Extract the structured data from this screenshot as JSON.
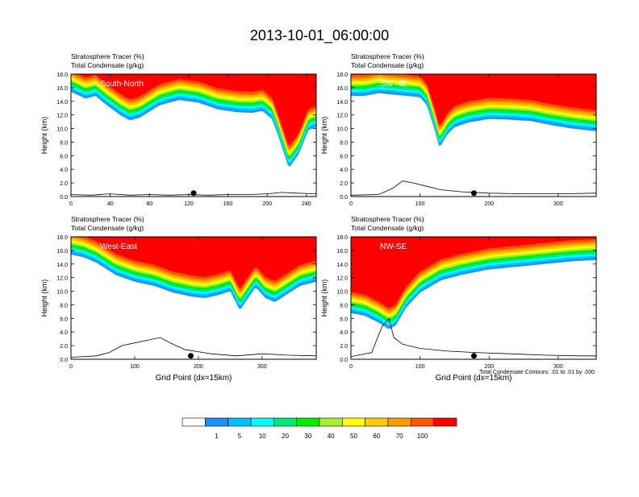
{
  "figure_title": "2013-10-01_06:00:00",
  "colorbar": {
    "colors": [
      "#ffffff",
      "#1e90ff",
      "#00bfff",
      "#00ffff",
      "#00e87a",
      "#00ee00",
      "#a8f030",
      "#ffff00",
      "#ffcc00",
      "#ff9900",
      "#ff5500",
      "#ff0000"
    ],
    "labels": [
      "1",
      "5",
      "10",
      "20",
      "30",
      "40",
      "50",
      "60",
      "70",
      "100"
    ]
  },
  "footnote": "Total Condensate Contours: .01 to .01 by .000",
  "chart_data": [
    {
      "type": "heatmap",
      "label": "South-North",
      "title_line1": "Stratosphere Tracer   (%)",
      "title_line2": "Total Condensate   (g/kg)",
      "ylabel": "Height (km)",
      "xlabel": "",
      "xlim": [
        0,
        250
      ],
      "ylim": [
        0,
        18
      ],
      "xticks": [
        0,
        40,
        80,
        120,
        160,
        200,
        240
      ],
      "yticks": [
        "0.0",
        "2.0",
        "4.0",
        "6.0",
        "8.0",
        "10.0",
        "12.0",
        "14.0",
        "16.0",
        "18.0"
      ],
      "marker_x": 125,
      "tracer_base_km": [
        [
          0,
          15.4
        ],
        [
          15,
          14.4
        ],
        [
          25,
          14.8
        ],
        [
          35,
          13.6
        ],
        [
          50,
          12.0
        ],
        [
          60,
          11.2
        ],
        [
          70,
          11.6
        ],
        [
          90,
          13.4
        ],
        [
          110,
          14.2
        ],
        [
          130,
          13.8
        ],
        [
          150,
          12.8
        ],
        [
          170,
          12.4
        ],
        [
          185,
          12.3
        ],
        [
          195,
          12.6
        ],
        [
          205,
          11.4
        ],
        [
          212,
          8.6
        ],
        [
          222,
          4.2
        ],
        [
          232,
          6.2
        ],
        [
          242,
          9.8
        ],
        [
          250,
          10.2
        ]
      ],
      "terrain_km": [
        [
          0,
          0.3
        ],
        [
          20,
          0.2
        ],
        [
          40,
          0.4
        ],
        [
          60,
          0.2
        ],
        [
          80,
          0.3
        ],
        [
          100,
          0.2
        ],
        [
          120,
          0.3
        ],
        [
          140,
          0.2
        ],
        [
          160,
          0.3
        ],
        [
          180,
          0.3
        ],
        [
          200,
          0.4
        ],
        [
          215,
          0.6
        ],
        [
          230,
          0.5
        ],
        [
          250,
          0.4
        ]
      ]
    },
    {
      "type": "heatmap",
      "label": "SW-NE",
      "title_line1": "Stratosphere Tracer   (%)",
      "title_line2": "Total Condensate   (g/kg)",
      "ylabel": "Height (km)",
      "xlabel": "",
      "xlim": [
        0,
        355
      ],
      "ylim": [
        0,
        18
      ],
      "xticks": [
        0,
        100,
        200,
        300
      ],
      "yticks": [
        "0.0",
        "2.0",
        "4.0",
        "6.0",
        "8.0",
        "10.0",
        "12.0",
        "14.0",
        "16.0",
        "18.0"
      ],
      "marker_x": 178,
      "tracer_base_km": [
        [
          0,
          14.8
        ],
        [
          20,
          14.8
        ],
        [
          40,
          15.2
        ],
        [
          60,
          15.0
        ],
        [
          80,
          14.8
        ],
        [
          100,
          14.6
        ],
        [
          110,
          13.4
        ],
        [
          120,
          10.2
        ],
        [
          128,
          7.2
        ],
        [
          140,
          9.2
        ],
        [
          150,
          10.2
        ],
        [
          170,
          10.9
        ],
        [
          200,
          11.4
        ],
        [
          230,
          11.3
        ],
        [
          260,
          11.1
        ],
        [
          290,
          10.5
        ],
        [
          320,
          10.0
        ],
        [
          355,
          9.6
        ]
      ],
      "terrain_km": [
        [
          0,
          0.2
        ],
        [
          40,
          0.3
        ],
        [
          60,
          1.2
        ],
        [
          75,
          2.3
        ],
        [
          90,
          2.0
        ],
        [
          110,
          1.5
        ],
        [
          130,
          1.0
        ],
        [
          160,
          0.7
        ],
        [
          200,
          0.5
        ],
        [
          250,
          0.4
        ],
        [
          300,
          0.4
        ],
        [
          355,
          0.5
        ]
      ]
    },
    {
      "type": "heatmap",
      "label": "West-East",
      "title_line1": "Stratosphere Tracer   (%)",
      "title_line2": "Total Condensate   (g/kg)",
      "ylabel": "Height (km)",
      "xlabel": "Grid Point (dx=15km)",
      "xlim": [
        0,
        385
      ],
      "ylim": [
        0,
        18
      ],
      "xticks": [
        0,
        100,
        200,
        300
      ],
      "yticks": [
        "0.0",
        "2.0",
        "4.0",
        "6.0",
        "8.0",
        "10.0",
        "12.0",
        "14.0",
        "16.0",
        "18.0"
      ],
      "marker_x": 188,
      "tracer_base_km": [
        [
          0,
          15.4
        ],
        [
          20,
          15.0
        ],
        [
          40,
          14.2
        ],
        [
          70,
          12.4
        ],
        [
          100,
          11.4
        ],
        [
          130,
          10.8
        ],
        [
          160,
          9.8
        ],
        [
          190,
          9.2
        ],
        [
          210,
          9.0
        ],
        [
          230,
          9.4
        ],
        [
          250,
          10.0
        ],
        [
          265,
          7.2
        ],
        [
          275,
          8.6
        ],
        [
          290,
          10.6
        ],
        [
          305,
          9.0
        ],
        [
          320,
          8.4
        ],
        [
          340,
          9.6
        ],
        [
          360,
          10.8
        ],
        [
          385,
          11.4
        ]
      ],
      "terrain_km": [
        [
          0,
          0.3
        ],
        [
          40,
          0.5
        ],
        [
          60,
          1.0
        ],
        [
          80,
          2.0
        ],
        [
          100,
          2.4
        ],
        [
          120,
          2.8
        ],
        [
          140,
          3.2
        ],
        [
          160,
          2.2
        ],
        [
          180,
          1.4
        ],
        [
          220,
          0.8
        ],
        [
          260,
          0.5
        ],
        [
          300,
          0.8
        ],
        [
          340,
          0.6
        ],
        [
          385,
          0.5
        ]
      ]
    },
    {
      "type": "heatmap",
      "label": "NW-SE",
      "title_line1": "Stratosphere Tracer   (%)",
      "title_line2": "Total Condensate   (g/kg)",
      "ylabel": "Height (km)",
      "xlabel": "Grid Point (dx=15km)",
      "xlim": [
        0,
        355
      ],
      "ylim": [
        0,
        18
      ],
      "xticks": [
        0,
        100,
        200,
        300
      ],
      "yticks": [
        "0.0",
        "2.0",
        "4.0",
        "6.0",
        "8.0",
        "10.0",
        "12.0",
        "14.0",
        "16.0",
        "18.0"
      ],
      "marker_x": 178,
      "tracer_base_km": [
        [
          0,
          6.8
        ],
        [
          20,
          6.4
        ],
        [
          40,
          5.4
        ],
        [
          55,
          4.4
        ],
        [
          65,
          5.0
        ],
        [
          80,
          7.6
        ],
        [
          100,
          9.8
        ],
        [
          130,
          11.6
        ],
        [
          160,
          12.4
        ],
        [
          200,
          13.2
        ],
        [
          240,
          13.6
        ],
        [
          280,
          14.0
        ],
        [
          320,
          14.4
        ],
        [
          355,
          14.6
        ]
      ],
      "terrain_km": [
        [
          0,
          0.4
        ],
        [
          30,
          1.0
        ],
        [
          45,
          4.8
        ],
        [
          55,
          6.0
        ],
        [
          62,
          3.2
        ],
        [
          75,
          2.2
        ],
        [
          100,
          1.6
        ],
        [
          140,
          1.2
        ],
        [
          180,
          1.0
        ],
        [
          230,
          0.8
        ],
        [
          280,
          0.6
        ],
        [
          330,
          0.5
        ],
        [
          355,
          0.5
        ]
      ]
    }
  ]
}
